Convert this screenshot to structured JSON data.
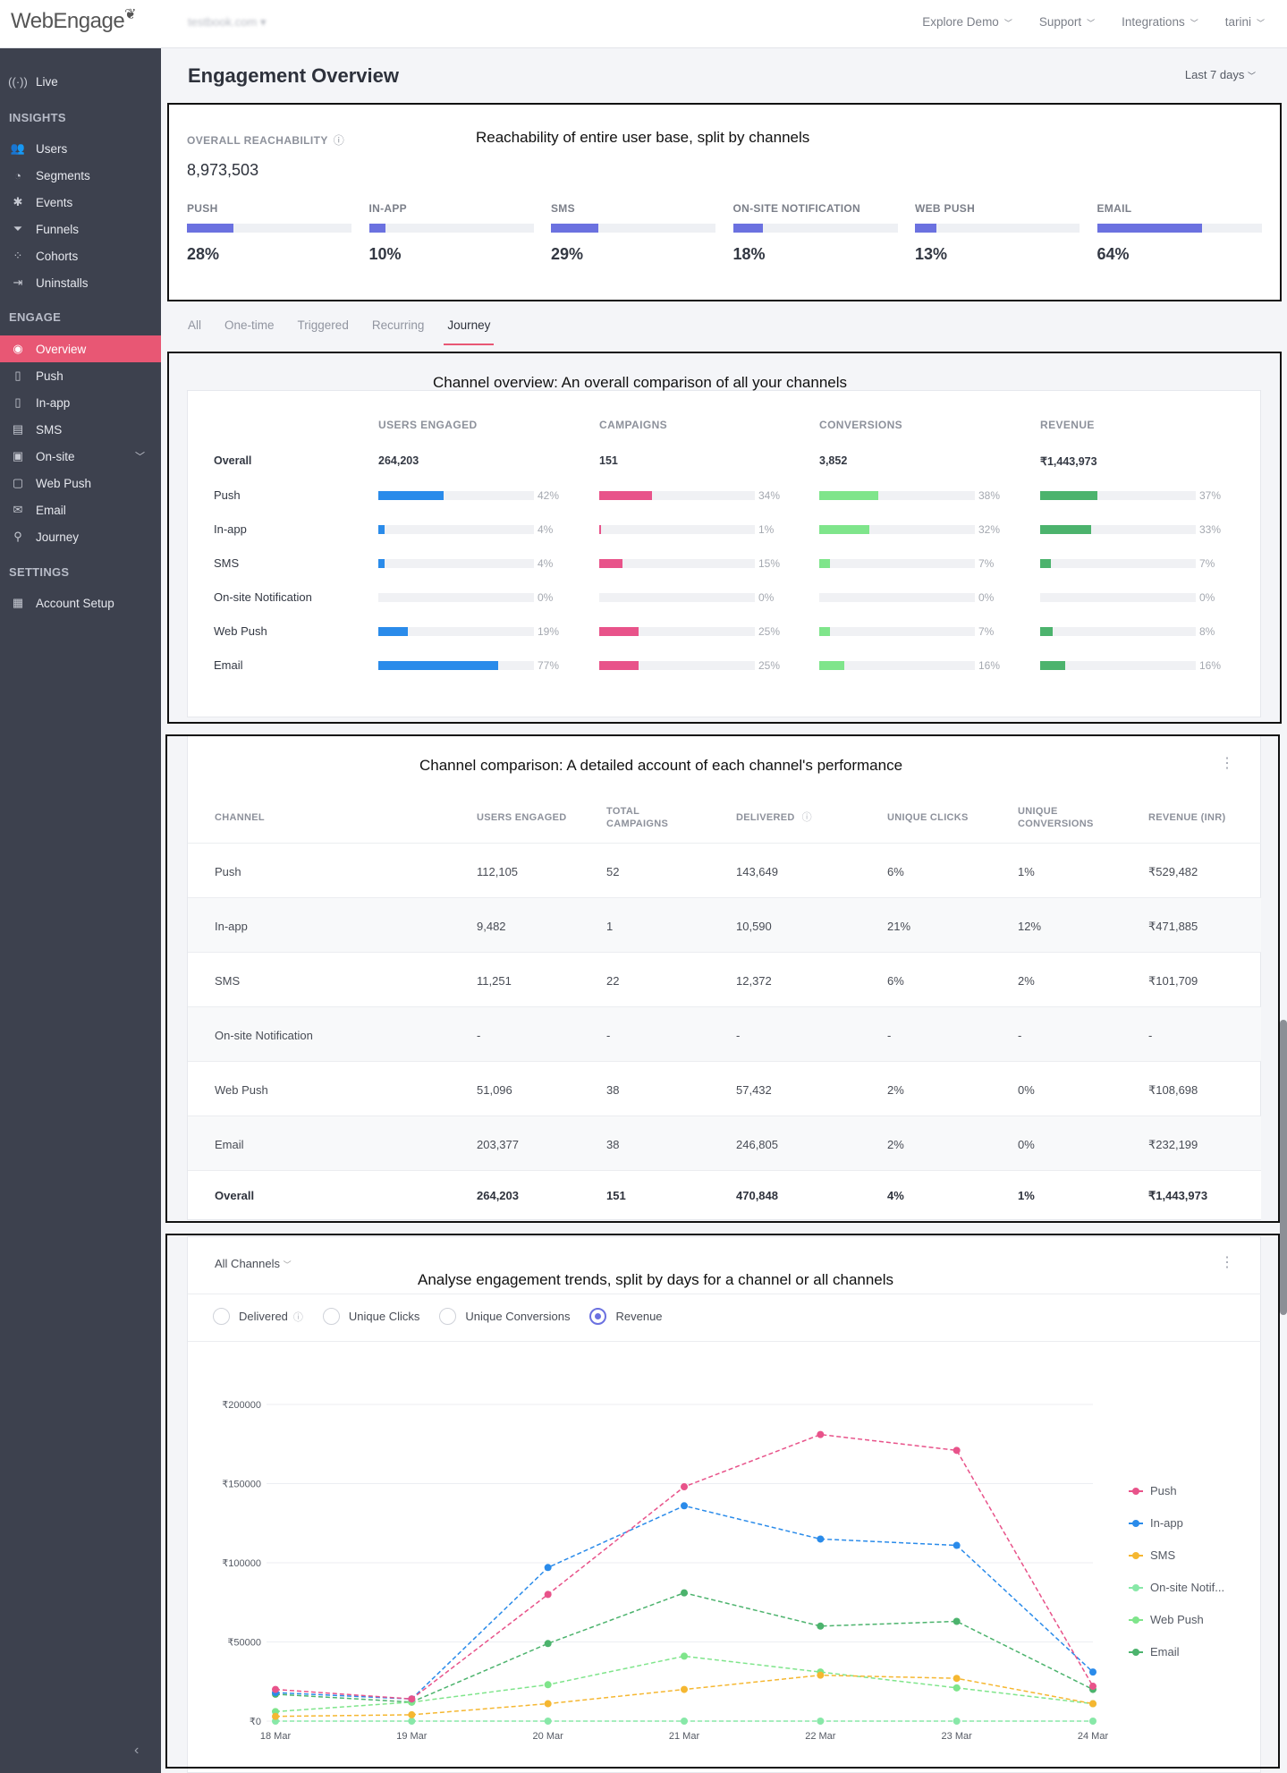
{
  "topbar": {
    "logo": "WebEngage",
    "project": "testbook.com",
    "nav": [
      "Explore Demo",
      "Support",
      "Integrations",
      "tarini"
    ]
  },
  "sidebar": {
    "live": "Live",
    "insights_head": "INSIGHTS",
    "insights": [
      "Users",
      "Segments",
      "Events",
      "Funnels",
      "Cohorts",
      "Uninstalls"
    ],
    "engage_head": "ENGAGE",
    "engage": [
      "Overview",
      "Push",
      "In-app",
      "SMS",
      "On-site",
      "Web Push",
      "Email",
      "Journey"
    ],
    "settings_head": "SETTINGS",
    "settings": [
      "Account Setup"
    ]
  },
  "page": {
    "title": "Engagement Overview",
    "range": "Last 7 days"
  },
  "annotations": {
    "reach": "Reachability of entire user base, split by channels",
    "overview": "Channel overview: An overall comparison of all your channels",
    "comparison": "Channel comparison: A detailed account of each channel's performance",
    "trends": "Analyse engagement trends, split by days for a channel or all channels"
  },
  "reachability": {
    "label": "OVERALL REACHABILITY",
    "total": "8,973,503",
    "channels": [
      {
        "name": "PUSH",
        "pct": "28%",
        "value": 28
      },
      {
        "name": "IN-APP",
        "pct": "10%",
        "value": 10
      },
      {
        "name": "SMS",
        "pct": "29%",
        "value": 29
      },
      {
        "name": "ON-SITE NOTIFICATION",
        "pct": "18%",
        "value": 18
      },
      {
        "name": "WEB PUSH",
        "pct": "13%",
        "value": 13
      },
      {
        "name": "EMAIL",
        "pct": "64%",
        "value": 64
      }
    ]
  },
  "tabs": [
    "All",
    "One-time",
    "Triggered",
    "Recurring",
    "Journey"
  ],
  "overview": {
    "headers": [
      "USERS ENGAGED",
      "CAMPAIGNS",
      "CONVERSIONS",
      "REVENUE"
    ],
    "overall_label": "Overall",
    "totals": [
      "264,203",
      "151",
      "3,852",
      "₹1,443,973"
    ],
    "colors": [
      "#2a8bea",
      "#e8538a",
      "#7fe58b",
      "#4cb36d"
    ],
    "rows": [
      {
        "name": "Push",
        "values": [
          42,
          34,
          38,
          37
        ]
      },
      {
        "name": "In-app",
        "values": [
          4,
          1,
          32,
          33
        ]
      },
      {
        "name": "SMS",
        "values": [
          4,
          15,
          7,
          7
        ]
      },
      {
        "name": "On-site Notification",
        "values": [
          0,
          0,
          0,
          0
        ]
      },
      {
        "name": "Web Push",
        "values": [
          19,
          25,
          7,
          8
        ]
      },
      {
        "name": "Email",
        "values": [
          77,
          25,
          16,
          16
        ]
      }
    ]
  },
  "comparison": {
    "headers": [
      "CHANNEL",
      "USERS ENGAGED",
      "TOTAL CAMPAIGNS",
      "DELIVERED",
      "UNIQUE CLICKS",
      "UNIQUE CONVERSIONS",
      "REVENUE (INR)"
    ],
    "rows": [
      [
        "Push",
        "112,105",
        "52",
        "143,649",
        "6%",
        "1%",
        "₹529,482"
      ],
      [
        "In-app",
        "9,482",
        "1",
        "10,590",
        "21%",
        "12%",
        "₹471,885"
      ],
      [
        "SMS",
        "11,251",
        "22",
        "12,372",
        "6%",
        "2%",
        "₹101,709"
      ],
      [
        "On-site Notification",
        "-",
        "-",
        "-",
        "-",
        "-",
        "-"
      ],
      [
        "Web Push",
        "51,096",
        "38",
        "57,432",
        "2%",
        "0%",
        "₹108,698"
      ],
      [
        "Email",
        "203,377",
        "38",
        "246,805",
        "2%",
        "0%",
        "₹232,199"
      ]
    ],
    "total": [
      "Overall",
      "264,203",
      "151",
      "470,848",
      "4%",
      "1%",
      "₹1,443,973"
    ]
  },
  "trends": {
    "dropdown": "All Channels",
    "metrics": [
      "Delivered",
      "Unique Clicks",
      "Unique Conversions",
      "Revenue"
    ],
    "selected": "Revenue"
  },
  "chart_data": {
    "type": "line",
    "x": [
      "18 Mar",
      "19 Mar",
      "20 Mar",
      "21 Mar",
      "22 Mar",
      "23 Mar",
      "24 Mar"
    ],
    "ylim": [
      0,
      200000
    ],
    "yticks": [
      "₹0",
      "₹50000",
      "₹100000",
      "₹150000",
      "₹200000"
    ],
    "ytick_values": [
      0,
      50000,
      100000,
      150000,
      200000
    ],
    "grid": true,
    "legend": "right",
    "series": [
      {
        "name": "Push",
        "color": "#e8538a",
        "values": [
          20000,
          14000,
          80000,
          148000,
          181000,
          171000,
          22000
        ]
      },
      {
        "name": "In-app",
        "color": "#2a8bea",
        "values": [
          18000,
          14000,
          97000,
          136000,
          115000,
          111000,
          31000
        ]
      },
      {
        "name": "SMS",
        "color": "#f5b731",
        "values": [
          3000,
          4000,
          11000,
          20000,
          29000,
          27000,
          11000
        ]
      },
      {
        "name": "On-site Notif...",
        "color": "#88e8a8",
        "values": [
          0,
          0,
          0,
          0,
          0,
          0,
          0
        ]
      },
      {
        "name": "Web Push",
        "color": "#7fe58b",
        "values": [
          6000,
          12000,
          23000,
          41000,
          31000,
          21000,
          11000
        ]
      },
      {
        "name": "Email",
        "color": "#4cb36d",
        "values": [
          17000,
          12000,
          49000,
          81000,
          60000,
          63000,
          20000
        ]
      }
    ]
  }
}
